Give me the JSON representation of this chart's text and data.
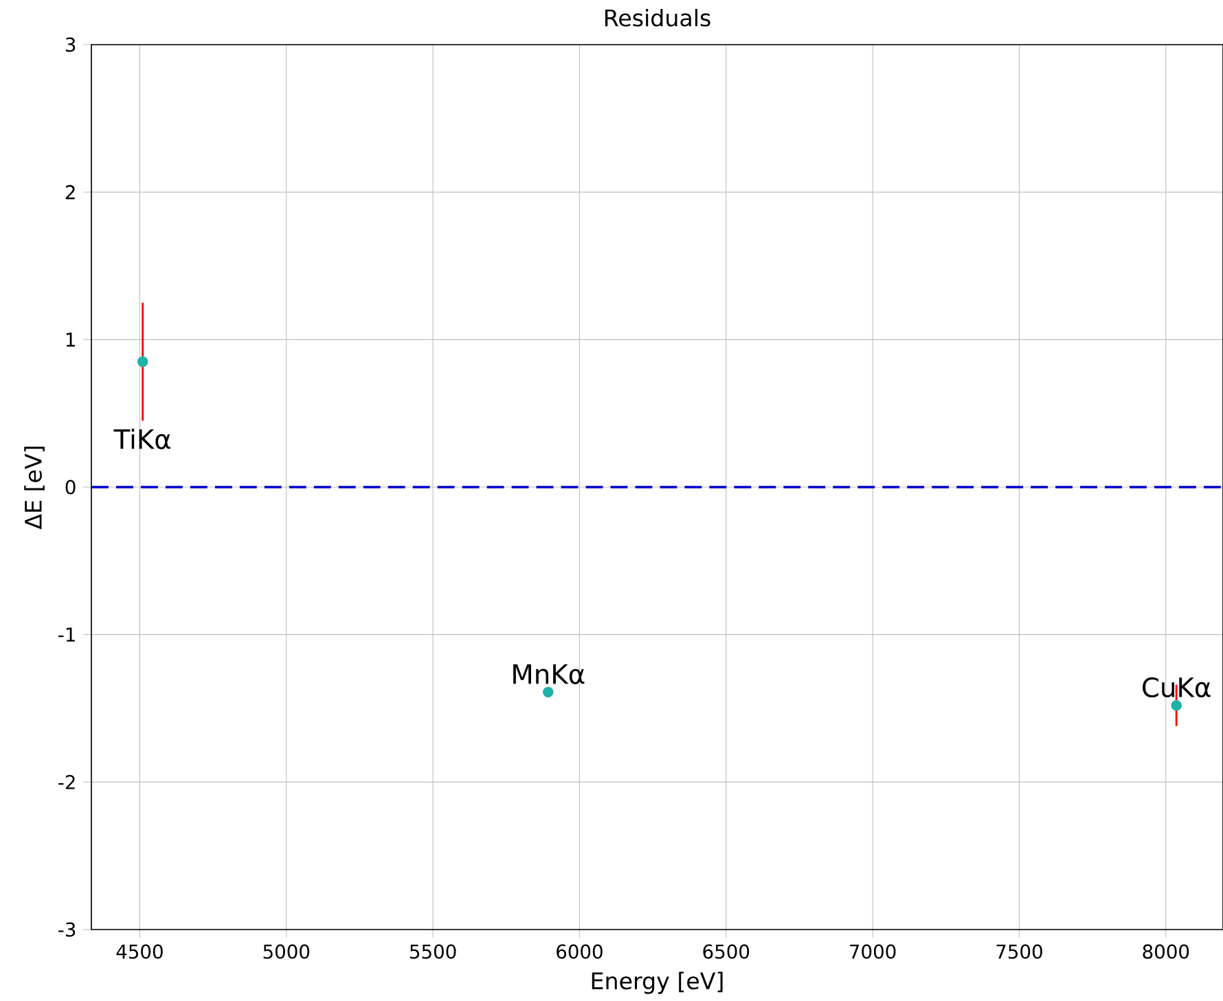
{
  "chart_data": {
    "type": "scatter",
    "title": "Residuals",
    "xlabel": "Energy [eV]",
    "ylabel": "ΔE [eV]",
    "x": [
      4510,
      5893,
      8036
    ],
    "series": [
      {
        "color": "#20b2aa",
        "values": [
          0.85,
          -1.39,
          -1.48
        ],
        "errors": [
          0.4,
          0.01,
          0.14
        ]
      }
    ],
    "marker": "circle",
    "annotations": [
      {
        "text": "TiKα",
        "x": 4510,
        "y": 0.85
      },
      {
        "text": "MnKα",
        "x": 5893,
        "y": -1.39
      },
      {
        "text": "CuKα",
        "x": 8036,
        "y": -1.48
      }
    ],
    "ref_lines": [
      {
        "axis": "y",
        "value": 0,
        "color": "#0000cc",
        "line_style": "dashed"
      }
    ],
    "xlim": [
      4335,
      8195
    ],
    "ylim": [
      -3,
      3
    ],
    "xticks": [
      4500,
      5000,
      5500,
      6000,
      6500,
      7000,
      7500,
      8000
    ],
    "yticks": [
      -3,
      -2,
      -1,
      0,
      1,
      2,
      3
    ],
    "grid": true
  }
}
